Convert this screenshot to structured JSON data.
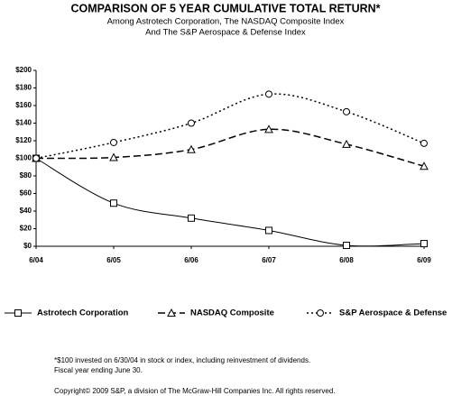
{
  "chart_data": {
    "type": "line",
    "title": "COMPARISON OF 5 YEAR CUMULATIVE TOTAL RETURN*",
    "subtitle": [
      "Among Astrotech Corporation, The NASDAQ Composite Index",
      "And The S&P Aerospace & Defense Index"
    ],
    "categories": [
      "6/04",
      "6/05",
      "6/06",
      "6/07",
      "6/08",
      "6/09"
    ],
    "series": [
      {
        "name": "Astrotech Corporation",
        "color": "#000000",
        "line_style": "solid",
        "marker": "square",
        "values": [
          100,
          49,
          32,
          18,
          1,
          3
        ]
      },
      {
        "name": "NASDAQ Composite",
        "color": "#000000",
        "line_style": "dashed",
        "marker": "triangle",
        "values": [
          100,
          101,
          110,
          133,
          116,
          91
        ]
      },
      {
        "name": "S&P Aerospace & Defense",
        "color": "#000000",
        "line_style": "dotted",
        "marker": "circle",
        "values": [
          100,
          118,
          140,
          173,
          153,
          117
        ]
      }
    ],
    "ylim": [
      0,
      200
    ],
    "yticks": [
      {
        "value": 0,
        "label": "$0"
      },
      {
        "value": 20,
        "label": "$20"
      },
      {
        "value": 40,
        "label": "$40"
      },
      {
        "value": 60,
        "label": "$60"
      },
      {
        "value": 80,
        "label": "$80"
      },
      {
        "value": 100,
        "label": "$100"
      },
      {
        "value": 120,
        "label": "$120"
      },
      {
        "value": 140,
        "label": "$140"
      },
      {
        "value": 160,
        "label": "$160"
      },
      {
        "value": 180,
        "label": "$180"
      },
      {
        "value": 200,
        "label": "$200"
      }
    ],
    "grid": false,
    "legend": "bottom",
    "notes": [
      "*$100 invested on 6/30/04 in stock or index, including reinvestment of dividends.",
      "Fiscal year ending June 30."
    ],
    "copyright": "Copyright© 2009 S&P, a division of The McGraw-Hill Companies Inc. All rights reserved."
  }
}
